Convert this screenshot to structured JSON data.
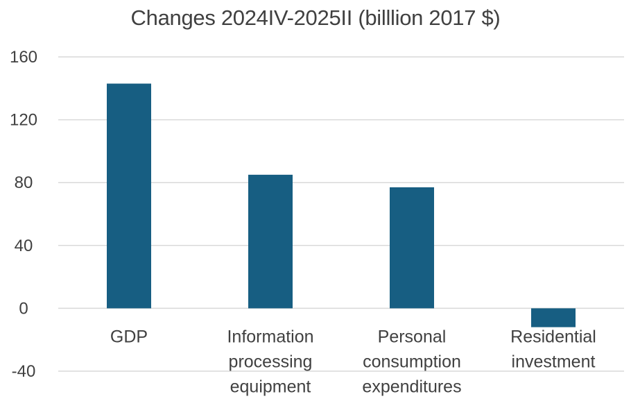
{
  "chart_data": {
    "type": "bar",
    "title": "Changes 2024IV-2025II (billlion 2017 $)",
    "xlabel": "",
    "ylabel": "",
    "categories": [
      [
        "GDP"
      ],
      [
        "Information",
        "processing",
        "equipment"
      ],
      [
        "Personal",
        "consumption",
        "expenditures"
      ],
      [
        "Residential",
        "investment"
      ]
    ],
    "values": [
      143,
      85,
      77,
      -12
    ],
    "ylim": [
      -40,
      160
    ],
    "yticks": [
      160,
      120,
      80,
      40,
      0,
      -40
    ],
    "grid": true,
    "legend": "none",
    "bar_color": "#175E82",
    "grid_color": "#D9D9D9"
  }
}
